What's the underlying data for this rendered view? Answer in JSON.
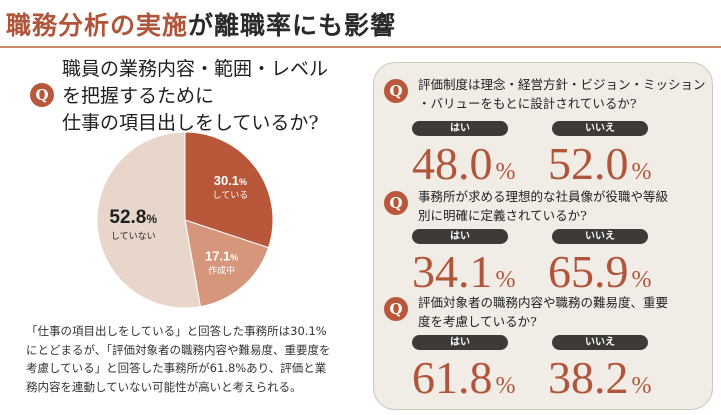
{
  "title": {
    "accent": "職務分析の実施",
    "rest": "が離職率にも影響"
  },
  "main_question": {
    "badge": "Q",
    "lines": [
      "職員の業務内容・範囲・レベル",
      "を把握するために",
      "仕事の項目出しをしているか?"
    ]
  },
  "chart_data": {
    "type": "pie",
    "slices": [
      {
        "value_label": "30.1",
        "unit": "%",
        "label": "している",
        "value": 30.1,
        "color": "#b8573a",
        "text_color": "#ffffff"
      },
      {
        "value_label": "17.1",
        "unit": "%",
        "label": "作成中",
        "value": 17.1,
        "color": "#d5967b",
        "text_color": "#ffffff"
      },
      {
        "value_label": "52.8",
        "unit": "%",
        "label": "していない",
        "value": 52.8,
        "color": "#e8d6cb",
        "text_color": "#1f1f1f"
      }
    ]
  },
  "note": {
    "lines": [
      "「仕事の項目出しをしている」と回答した事務所は30.1%",
      "にとどまるが、「評価対象者の職務内容や難易度、重要度を",
      "考慮している」と回答した事務所が61.8%あり、評価と業",
      "務内容を連動していない可能性が高いと考えられる。"
    ]
  },
  "sub_questions": [
    {
      "badge": "Q",
      "lines": [
        "評価制度は理念・経営方針・ビジョン・ミッション",
        "・バリューをもとに設計されているか?"
      ],
      "yes_label": "はい",
      "no_label": "いいえ",
      "yes_value": "48.0",
      "no_value": "52.0",
      "unit": "%"
    },
    {
      "badge": "Q",
      "lines": [
        "事務所が求める理想的な社員像が役職や等級",
        "別に明確に定義されているか?"
      ],
      "yes_label": "はい",
      "no_label": "いいえ",
      "yes_value": "34.1",
      "no_value": "65.9",
      "unit": "%"
    },
    {
      "badge": "Q",
      "lines": [
        "評価対象者の職務内容や職務の難易度、重要",
        "度を考慮しているか?"
      ],
      "yes_label": "はい",
      "no_label": "いいえ",
      "yes_value": "61.8",
      "no_value": "38.2",
      "unit": "%"
    }
  ]
}
